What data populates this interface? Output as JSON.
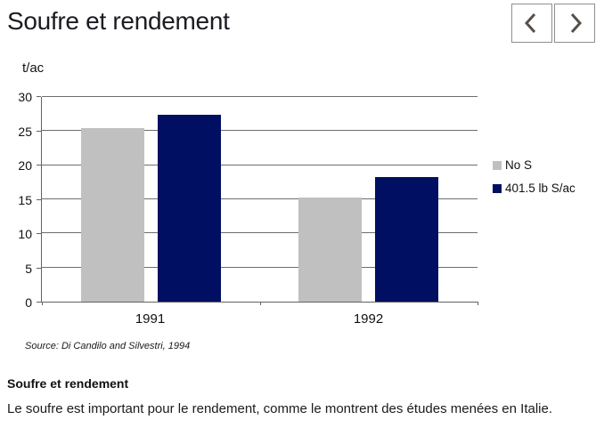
{
  "header": {
    "title": "Soufre et rendement",
    "nav": {
      "prev_icon": "chevron-left",
      "next_icon": "chevron-right"
    }
  },
  "chart_data": {
    "type": "bar",
    "title": "Soufre et rendement",
    "categories": [
      "1991",
      "1992"
    ],
    "series": [
      {
        "name": "No S",
        "color": "#c0c0c0",
        "values": [
          25.5,
          15.3
        ]
      },
      {
        "name": "401.5 lb S/ac",
        "color": "#000f62",
        "values": [
          27.4,
          18.3
        ]
      }
    ],
    "xlabel": "",
    "ylabel": "t/ac",
    "ylim": [
      0,
      30
    ],
    "yticks": [
      0,
      5,
      10,
      15,
      20,
      25,
      30
    ],
    "grid": true,
    "legend_position": "right",
    "source": "Source: Di Candilo and Silvestri, 1994"
  },
  "description": {
    "heading": "Soufre et rendement",
    "body": "Le soufre est important pour le rendement, comme le montrent des études menées en Italie."
  },
  "colors": {
    "bar_gray": "#c0c0c0",
    "bar_navy": "#000f62",
    "grid_line": "#6e6e6e",
    "chevron": "#55504b",
    "button_border": "#8f8f8f"
  }
}
